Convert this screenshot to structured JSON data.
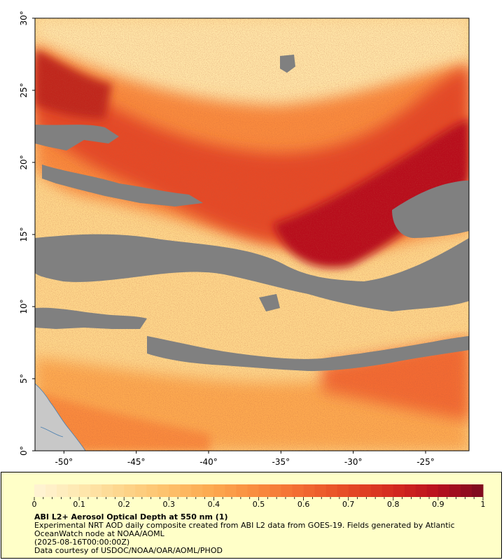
{
  "map": {
    "lat_min": 0,
    "lat_max": 30,
    "lon_min": -52,
    "lon_max": -22,
    "x_ticks": [
      {
        "value": -50,
        "label": "-50°"
      },
      {
        "value": -45,
        "label": "-45°"
      },
      {
        "value": -40,
        "label": "-40°"
      },
      {
        "value": -35,
        "label": "-35°"
      },
      {
        "value": -30,
        "label": "-30°"
      },
      {
        "value": -25,
        "label": "-25°"
      }
    ],
    "y_ticks": [
      {
        "value": 0,
        "label": "0°"
      },
      {
        "value": 5,
        "label": "5°"
      },
      {
        "value": 10,
        "label": "10°"
      },
      {
        "value": 15,
        "label": "15°"
      },
      {
        "value": 20,
        "label": "20°"
      },
      {
        "value": 25,
        "label": "25°"
      },
      {
        "value": 30,
        "label": "30°"
      }
    ],
    "colors": {
      "no_data": "#808080",
      "land": "#c8c8c8",
      "coast": "#4a7fb0"
    }
  },
  "colorbar": {
    "min": 0,
    "max": 1,
    "labels": [
      "0",
      "0.1",
      "0.2",
      "0.3",
      "0.4",
      "0.5",
      "0.6",
      "0.7",
      "0.8",
      "0.9",
      "1"
    ],
    "colors": [
      "#fff5d6",
      "#fee8b0",
      "#fdd58a",
      "#fdc06a",
      "#fca84f",
      "#f98a3e",
      "#f26a31",
      "#e54a26",
      "#d42a1f",
      "#b8101f",
      "#7a0a1e"
    ]
  },
  "info": {
    "title": "ABI L2+ Aerosol Optical Depth at 550 nm (1)",
    "description": "Experimental NRT AOD daily composite created from ABI L2 data from GOES-19. Fields generated by Atlantic OceanWatch node at NOAA/AOML",
    "timestamp": "(2025-08-16T00:00:00Z)",
    "credit": "Data courtesy of USDOC/NOAA/OAR/AOML/PHOD"
  }
}
